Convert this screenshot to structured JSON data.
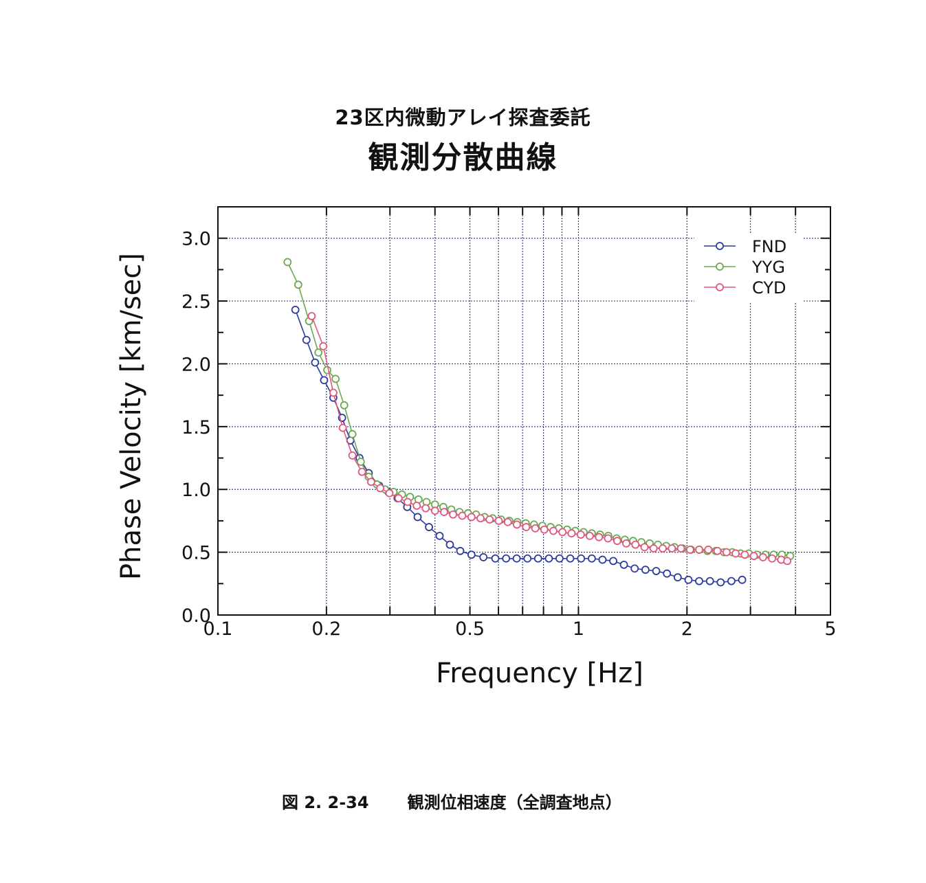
{
  "title": {
    "line1": "23区内微動アレイ探査委託",
    "line2": "観測分散曲線"
  },
  "caption": {
    "number": "図 2. 2-34",
    "text": "観測位相速度（全調査地点）"
  },
  "chart_data": {
    "type": "line",
    "xscale": "log",
    "xlabel": "Frequency [Hz]",
    "ylabel": "Phase Velocity [km/sec]",
    "xlim": [
      0.1,
      5
    ],
    "ylim": [
      0,
      3.25
    ],
    "xticks": [
      {
        "value": 0.1,
        "label": "0.1"
      },
      {
        "value": 0.2,
        "label": "0.2"
      },
      {
        "value": 0.5,
        "label": "0.5"
      },
      {
        "value": 1,
        "label": "1"
      },
      {
        "value": 2,
        "label": "2"
      },
      {
        "value": 5,
        "label": "5"
      }
    ],
    "yticks": [
      {
        "value": 0,
        "label": "0.0"
      },
      {
        "value": 0.5,
        "label": "0.5"
      },
      {
        "value": 1,
        "label": "1.0"
      },
      {
        "value": 1.5,
        "label": "1.5"
      },
      {
        "value": 2,
        "label": "2.0"
      },
      {
        "value": 2.5,
        "label": "2.5"
      },
      {
        "value": 3,
        "label": "3.0"
      }
    ],
    "grid": true,
    "legend_position": "top-right",
    "series": [
      {
        "name": "FND",
        "color": "#2b3a9c",
        "points": [
          [
            0.164,
            2.43
          ],
          [
            0.176,
            2.19
          ],
          [
            0.186,
            2.01
          ],
          [
            0.197,
            1.87
          ],
          [
            0.209,
            1.73
          ],
          [
            0.221,
            1.57
          ],
          [
            0.233,
            1.39
          ],
          [
            0.247,
            1.25
          ],
          [
            0.262,
            1.13
          ],
          [
            0.28,
            1.03
          ],
          [
            0.297,
            0.98
          ],
          [
            0.315,
            0.93
          ],
          [
            0.335,
            0.86
          ],
          [
            0.358,
            0.78
          ],
          [
            0.385,
            0.7
          ],
          [
            0.412,
            0.63
          ],
          [
            0.44,
            0.56
          ],
          [
            0.47,
            0.51
          ],
          [
            0.505,
            0.48
          ],
          [
            0.545,
            0.46
          ],
          [
            0.588,
            0.45
          ],
          [
            0.63,
            0.45
          ],
          [
            0.674,
            0.45
          ],
          [
            0.722,
            0.45
          ],
          [
            0.773,
            0.45
          ],
          [
            0.828,
            0.45
          ],
          [
            0.886,
            0.45
          ],
          [
            0.949,
            0.45
          ],
          [
            1.017,
            0.45
          ],
          [
            1.089,
            0.45
          ],
          [
            1.166,
            0.44
          ],
          [
            1.249,
            0.43
          ],
          [
            1.337,
            0.4
          ],
          [
            1.432,
            0.37
          ],
          [
            1.534,
            0.36
          ],
          [
            1.643,
            0.35
          ],
          [
            1.76,
            0.33
          ],
          [
            1.885,
            0.3
          ],
          [
            2.019,
            0.28
          ],
          [
            2.162,
            0.27
          ],
          [
            2.316,
            0.27
          ],
          [
            2.48,
            0.26
          ],
          [
            2.656,
            0.27
          ],
          [
            2.845,
            0.28
          ]
        ]
      },
      {
        "name": "YYG",
        "color": "#6aa84f",
        "points": [
          [
            0.156,
            2.81
          ],
          [
            0.167,
            2.63
          ],
          [
            0.179,
            2.34
          ],
          [
            0.19,
            2.09
          ],
          [
            0.201,
            1.95
          ],
          [
            0.212,
            1.88
          ],
          [
            0.224,
            1.67
          ],
          [
            0.236,
            1.44
          ],
          [
            0.249,
            1.22
          ],
          [
            0.262,
            1.1
          ],
          [
            0.276,
            1.04
          ],
          [
            0.291,
            1.0
          ],
          [
            0.307,
            0.98
          ],
          [
            0.324,
            0.96
          ],
          [
            0.341,
            0.94
          ],
          [
            0.36,
            0.92
          ],
          [
            0.379,
            0.9
          ],
          [
            0.4,
            0.88
          ],
          [
            0.422,
            0.86
          ],
          [
            0.444,
            0.84
          ],
          [
            0.468,
            0.82
          ],
          [
            0.494,
            0.81
          ],
          [
            0.52,
            0.8
          ],
          [
            0.549,
            0.78
          ],
          [
            0.578,
            0.77
          ],
          [
            0.61,
            0.76
          ],
          [
            0.643,
            0.75
          ],
          [
            0.677,
            0.74
          ],
          [
            0.714,
            0.73
          ],
          [
            0.753,
            0.72
          ],
          [
            0.794,
            0.71
          ],
          [
            0.837,
            0.7
          ],
          [
            0.882,
            0.69
          ],
          [
            0.93,
            0.68
          ],
          [
            0.98,
            0.67
          ],
          [
            1.033,
            0.66
          ],
          [
            1.089,
            0.65
          ],
          [
            1.148,
            0.64
          ],
          [
            1.21,
            0.63
          ],
          [
            1.276,
            0.61
          ],
          [
            1.345,
            0.6
          ],
          [
            1.418,
            0.59
          ],
          [
            1.495,
            0.58
          ],
          [
            1.576,
            0.57
          ],
          [
            1.661,
            0.56
          ],
          [
            1.751,
            0.55
          ],
          [
            1.846,
            0.54
          ],
          [
            1.946,
            0.53
          ],
          [
            2.052,
            0.52
          ],
          [
            2.163,
            0.52
          ],
          [
            2.28,
            0.51
          ],
          [
            2.404,
            0.51
          ],
          [
            2.534,
            0.5
          ],
          [
            2.671,
            0.5
          ],
          [
            2.816,
            0.49
          ],
          [
            2.969,
            0.49
          ],
          [
            3.13,
            0.48
          ],
          [
            3.3,
            0.48
          ],
          [
            3.478,
            0.48
          ],
          [
            3.667,
            0.48
          ],
          [
            3.865,
            0.47
          ]
        ]
      },
      {
        "name": "CYD",
        "color": "#e2557f",
        "points": [
          [
            0.182,
            2.38
          ],
          [
            0.196,
            2.14
          ],
          [
            0.209,
            1.77
          ],
          [
            0.222,
            1.49
          ],
          [
            0.236,
            1.27
          ],
          [
            0.251,
            1.14
          ],
          [
            0.266,
            1.06
          ],
          [
            0.282,
            1.01
          ],
          [
            0.299,
            0.97
          ],
          [
            0.317,
            0.93
          ],
          [
            0.336,
            0.9
          ],
          [
            0.356,
            0.87
          ],
          [
            0.377,
            0.85
          ],
          [
            0.4,
            0.83
          ],
          [
            0.424,
            0.82
          ],
          [
            0.449,
            0.8
          ],
          [
            0.476,
            0.79
          ],
          [
            0.505,
            0.78
          ],
          [
            0.535,
            0.77
          ],
          [
            0.567,
            0.76
          ],
          [
            0.601,
            0.75
          ],
          [
            0.637,
            0.74
          ],
          [
            0.675,
            0.72
          ],
          [
            0.716,
            0.7
          ],
          [
            0.759,
            0.69
          ],
          [
            0.804,
            0.68
          ],
          [
            0.852,
            0.67
          ],
          [
            0.903,
            0.66
          ],
          [
            0.957,
            0.65
          ],
          [
            1.015,
            0.64
          ],
          [
            1.075,
            0.63
          ],
          [
            1.14,
            0.62
          ],
          [
            1.208,
            0.61
          ],
          [
            1.281,
            0.59
          ],
          [
            1.357,
            0.57
          ],
          [
            1.439,
            0.56
          ],
          [
            1.525,
            0.54
          ],
          [
            1.616,
            0.53
          ],
          [
            1.713,
            0.53
          ],
          [
            1.816,
            0.53
          ],
          [
            1.925,
            0.53
          ],
          [
            2.04,
            0.52
          ],
          [
            2.162,
            0.52
          ],
          [
            2.292,
            0.52
          ],
          [
            2.429,
            0.51
          ],
          [
            2.575,
            0.5
          ],
          [
            2.729,
            0.49
          ],
          [
            2.893,
            0.48
          ],
          [
            3.066,
            0.47
          ],
          [
            3.25,
            0.46
          ],
          [
            3.445,
            0.45
          ],
          [
            3.651,
            0.44
          ],
          [
            3.795,
            0.43
          ]
        ]
      }
    ]
  }
}
